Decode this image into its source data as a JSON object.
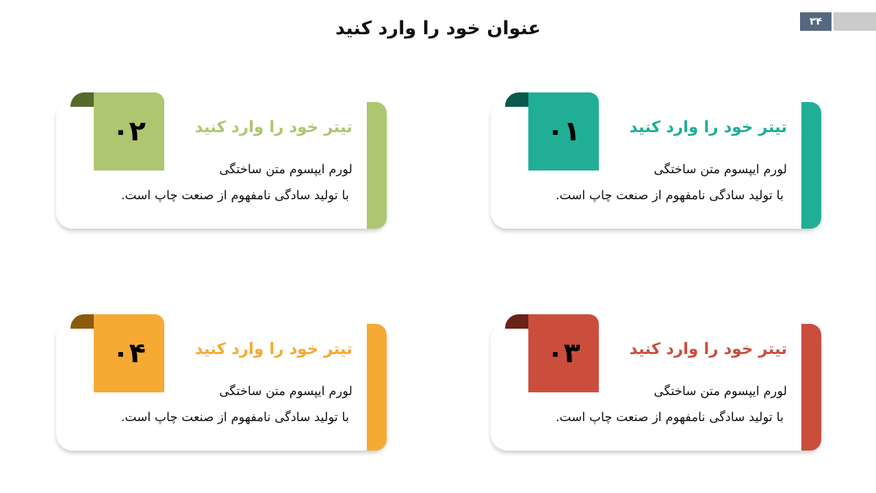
{
  "slide": {
    "title": "عنوان خود را وارد کنید",
    "page_number": "۳۴"
  },
  "cards": [
    {
      "number": "۰۱",
      "title": "تیتر خود را وارد کنید",
      "line1": "لورم ایپسوم متن ساختگی",
      "line2": "با تولید سادگی نامفهوم از صنعت چاپ است.",
      "color": "#20ae96",
      "fold_color": "#0c5a4c"
    },
    {
      "number": "۰۲",
      "title": "تیتر خود را وارد کنید",
      "line1": "لورم ایپسوم متن ساختگی",
      "line2": "با تولید سادگی نامفهوم از صنعت چاپ است.",
      "color": "#adc66f",
      "fold_color": "#556b2b"
    },
    {
      "number": "۰۳",
      "title": "تیتر خود را وارد کنید",
      "line1": "لورم ایپسوم متن ساختگی",
      "line2": "با تولید سادگی نامفهوم از صنعت چاپ است.",
      "color": "#cb4e3d",
      "fold_color": "#6b2218"
    },
    {
      "number": "۰۴",
      "title": "تیتر خود را وارد کنید",
      "line1": "لورم ایپسوم متن ساختگی",
      "line2": "با تولید سادگی نامفهوم از صنعت چاپ است.",
      "color": "#f6aa33",
      "fold_color": "#8c5a0a"
    }
  ]
}
